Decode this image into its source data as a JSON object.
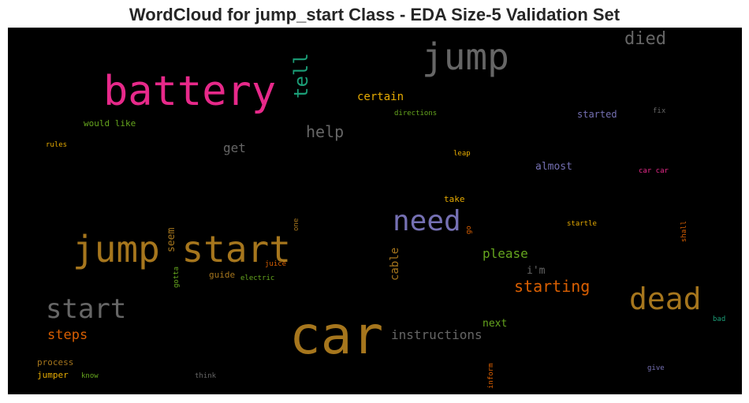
{
  "chart_data": {
    "type": "wordcloud",
    "title": "WordCloud for jump_start Class - EDA Size-5 Validation Set",
    "background": "#000000",
    "words": [
      {
        "text": "car",
        "color": "#a6761d"
      },
      {
        "text": "battery",
        "color": "#e7298a"
      },
      {
        "text": "jump start",
        "color": "#a6761d"
      },
      {
        "text": "jump",
        "color": "#666666"
      },
      {
        "text": "dead",
        "color": "#a6761d"
      },
      {
        "text": "need",
        "color": "#7570b3"
      },
      {
        "text": "start",
        "color": "#666666"
      },
      {
        "text": "tell",
        "color": "#1b9e77"
      },
      {
        "text": "died",
        "color": "#666666"
      },
      {
        "text": "help",
        "color": "#666666"
      },
      {
        "text": "starting",
        "color": "#d95f02"
      },
      {
        "text": "instructions",
        "color": "#666666"
      },
      {
        "text": "steps",
        "color": "#d95f02"
      },
      {
        "text": "please",
        "color": "#66a61e"
      },
      {
        "text": "certain",
        "color": "#e6ab02"
      },
      {
        "text": "get",
        "color": "#666666"
      },
      {
        "text": "cable",
        "color": "#a6761d"
      },
      {
        "text": "seem",
        "color": "#a6761d"
      },
      {
        "text": "almost",
        "color": "#7570b3"
      },
      {
        "text": "next",
        "color": "#66a61e"
      },
      {
        "text": "i'm",
        "color": "#666666"
      },
      {
        "text": "started",
        "color": "#7570b3"
      },
      {
        "text": "would like",
        "color": "#66a61e"
      },
      {
        "text": "take",
        "color": "#e6ab02"
      },
      {
        "text": "guide",
        "color": "#a6761d"
      },
      {
        "text": "process",
        "color": "#a6761d"
      },
      {
        "text": "jumper",
        "color": "#e6ab02"
      },
      {
        "text": "directions",
        "color": "#66a61e"
      },
      {
        "text": "rules",
        "color": "#e6ab02"
      },
      {
        "text": "leap",
        "color": "#e6ab02"
      },
      {
        "text": "fix",
        "color": "#666666"
      },
      {
        "text": "car car",
        "color": "#e7298a"
      },
      {
        "text": "startle",
        "color": "#e6ab02"
      },
      {
        "text": "shall",
        "color": "#d95f02"
      },
      {
        "text": "juice",
        "color": "#d95f02"
      },
      {
        "text": "electric",
        "color": "#66a61e"
      },
      {
        "text": "gotta",
        "color": "#66a61e"
      },
      {
        "text": "one",
        "color": "#a6761d"
      },
      {
        "text": "go",
        "color": "#d95f02"
      },
      {
        "text": "bad",
        "color": "#1b9e77"
      },
      {
        "text": "give",
        "color": "#7570b3"
      },
      {
        "text": "know",
        "color": "#66a61e"
      },
      {
        "text": "think",
        "color": "#666666"
      },
      {
        "text": "inform",
        "color": "#d95f02"
      }
    ]
  }
}
